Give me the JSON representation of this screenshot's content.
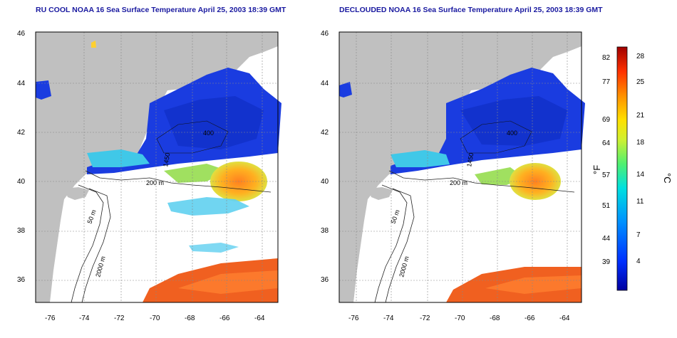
{
  "panels": [
    {
      "id": "rucool",
      "title": "RU COOL NOAA 16 Sea Surface Temperature April 25, 2003 18:39 GMT",
      "contour_labels": [
        "50 m",
        "200 m",
        "2000 m",
        "400",
        "1450"
      ]
    },
    {
      "id": "decloud",
      "title": "DECLOUDED NOAA 16 Sea Surface Temperature April 25, 2003 18:39 GMT",
      "contour_labels": [
        "50 m",
        "200 m",
        "2000 m",
        "400",
        "1450"
      ]
    }
  ],
  "axes": {
    "lon_ticks": [
      "-76",
      "-74",
      "-72",
      "-70",
      "-68",
      "-66",
      "-64"
    ],
    "lat_ticks": [
      "46",
      "44",
      "42",
      "40",
      "38",
      "36"
    ]
  },
  "colorbar": {
    "fahrenheit_ticks": [
      "82",
      "77",
      "69",
      "64",
      "57",
      "51",
      "44",
      "39"
    ],
    "celsius_ticks": [
      "28",
      "25",
      "21",
      "18",
      "14",
      "11",
      "7",
      "4"
    ],
    "fahrenheit_unit": "°F",
    "celsius_unit": "°C",
    "colors": [
      "#0000a0",
      "#0028ff",
      "#0090ff",
      "#00e0e0",
      "#40f080",
      "#c0f040",
      "#ffe000",
      "#ff9000",
      "#ff3000",
      "#b00000"
    ]
  },
  "colors": {
    "land": "#c0c0c0",
    "cold_water": "#1a3ce0",
    "warm_eddy": "#f0a020",
    "gulf_stream": "#f06020",
    "title": "#1a1aa0"
  }
}
